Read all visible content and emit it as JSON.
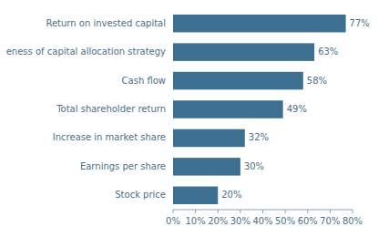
{
  "chart_data": {
    "type": "bar",
    "orientation": "horizontal",
    "categories": [
      "Stock price",
      "Earnings per share",
      "Increase in market share",
      "Total shareholder return",
      "Cash flow",
      "eness of capital allocation strategy",
      "Return on invested capital"
    ],
    "values": [
      20,
      30,
      32,
      49,
      58,
      63,
      77
    ],
    "value_labels": [
      "20%",
      "30%",
      "32%",
      "49%",
      "58%",
      "63%",
      "77%"
    ],
    "data_labels": true,
    "color": "#3d7090",
    "xlim": [
      0,
      80
    ],
    "xticks": [
      {
        "value": 0,
        "label": "0%"
      },
      {
        "value": 10,
        "label": "10%"
      },
      {
        "value": 20,
        "label": "20%"
      },
      {
        "value": 30,
        "label": "30%"
      },
      {
        "value": 40,
        "label": "40%"
      },
      {
        "value": 50,
        "label": "50%"
      },
      {
        "value": 60,
        "label": "60%"
      },
      {
        "value": 70,
        "label": "70%"
      },
      {
        "value": 80,
        "label": "80%"
      }
    ],
    "grid": false
  }
}
